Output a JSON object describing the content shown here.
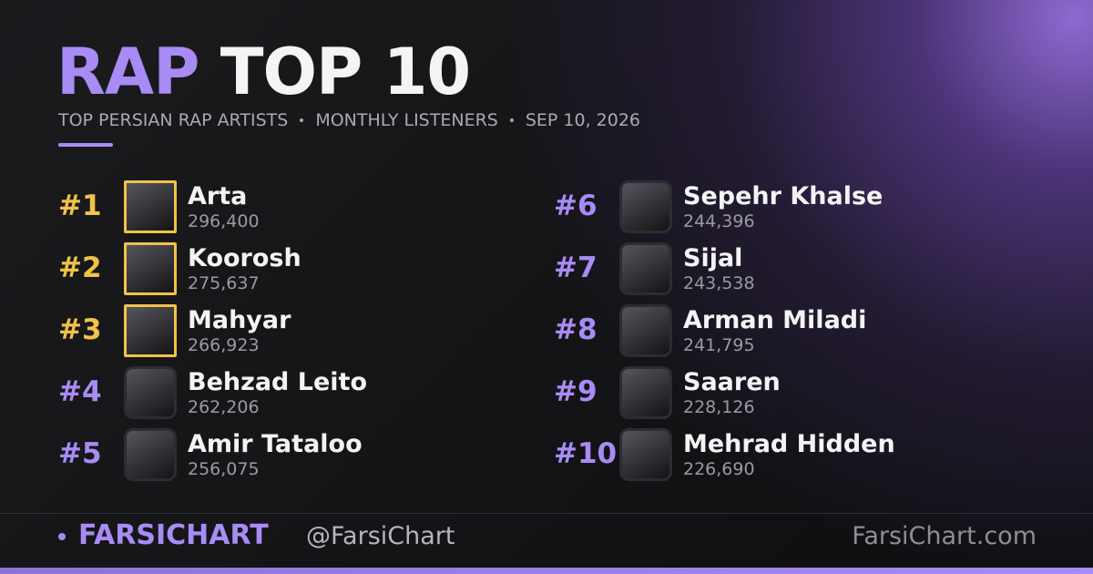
{
  "header": {
    "title_accent": "RAP",
    "title_rest": "TOP 10",
    "subtitle": [
      "TOP PERSIAN RAP ARTISTS",
      "MONTHLY LISTENERS",
      "SEP 10, 2026"
    ]
  },
  "entries": [
    {
      "rank": "#1",
      "name": "Arta",
      "listeners": "296,400"
    },
    {
      "rank": "#2",
      "name": "Koorosh",
      "listeners": "275,637"
    },
    {
      "rank": "#3",
      "name": "Mahyar",
      "listeners": "266,923"
    },
    {
      "rank": "#4",
      "name": "Behzad Leito",
      "listeners": "262,206"
    },
    {
      "rank": "#5",
      "name": "Amir Tataloo",
      "listeners": "256,075"
    },
    {
      "rank": "#6",
      "name": "Sepehr Khalse",
      "listeners": "244,396"
    },
    {
      "rank": "#7",
      "name": "Sijal",
      "listeners": "243,538"
    },
    {
      "rank": "#8",
      "name": "Arman Miladi",
      "listeners": "241,795"
    },
    {
      "rank": "#9",
      "name": "Saaren",
      "listeners": "228,126"
    },
    {
      "rank": "#10",
      "name": "Mehrad Hidden",
      "listeners": "226,690"
    }
  ],
  "footer": {
    "brand": "FARSICHART",
    "handle": "@FarsiChart",
    "site": "FarsiChart.com"
  }
}
